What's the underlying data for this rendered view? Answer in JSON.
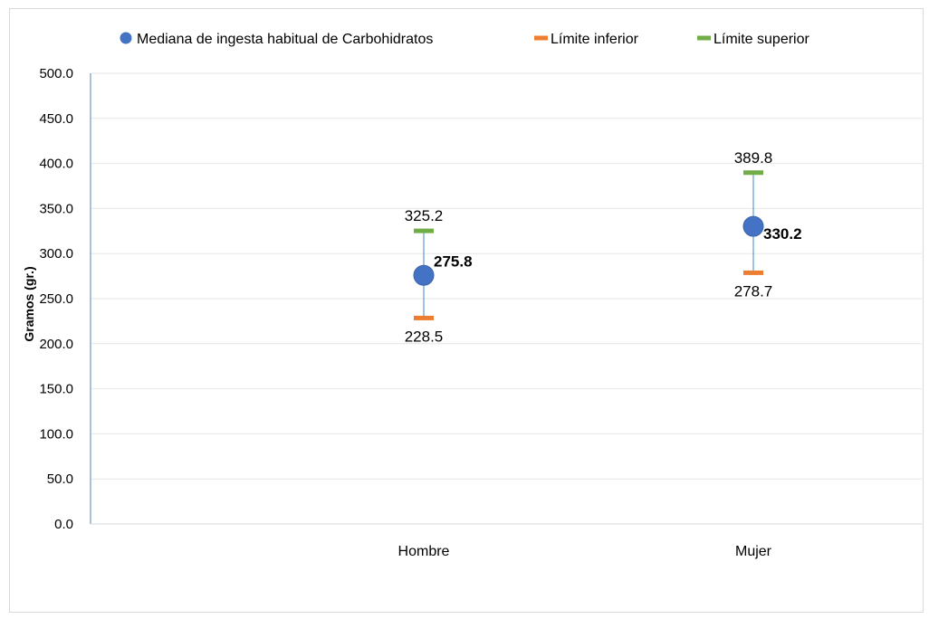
{
  "chart_data": {
    "type": "scatter",
    "categories": [
      "Hombre",
      "Mujer"
    ],
    "series": [
      {
        "name": "Mediana de ingesta habitual de Carbohidratos",
        "values": [
          275.8,
          330.2
        ],
        "labels": [
          "275.8",
          "330.2"
        ],
        "color": "#4472c4",
        "marker": "circle"
      },
      {
        "name": "Límite inferior",
        "values": [
          228.5,
          278.7
        ],
        "labels": [
          "228.5",
          "278.7"
        ],
        "color": "#ed7d31",
        "marker": "dash"
      },
      {
        "name": "Límite superior",
        "values": [
          325.2,
          389.8
        ],
        "labels": [
          "325.2",
          "389.8"
        ],
        "color": "#70ad47",
        "marker": "dash"
      }
    ],
    "ylabel": "Gramos (gr.)",
    "xlabel": "",
    "ylim": [
      0,
      500
    ],
    "yticks": [
      "0.0",
      "50.0",
      "100.0",
      "150.0",
      "200.0",
      "250.0",
      "300.0",
      "350.0",
      "400.0",
      "450.0",
      "500.0"
    ],
    "grid": true,
    "legend_position": "top",
    "range_line_color": "#5b9bd5"
  }
}
